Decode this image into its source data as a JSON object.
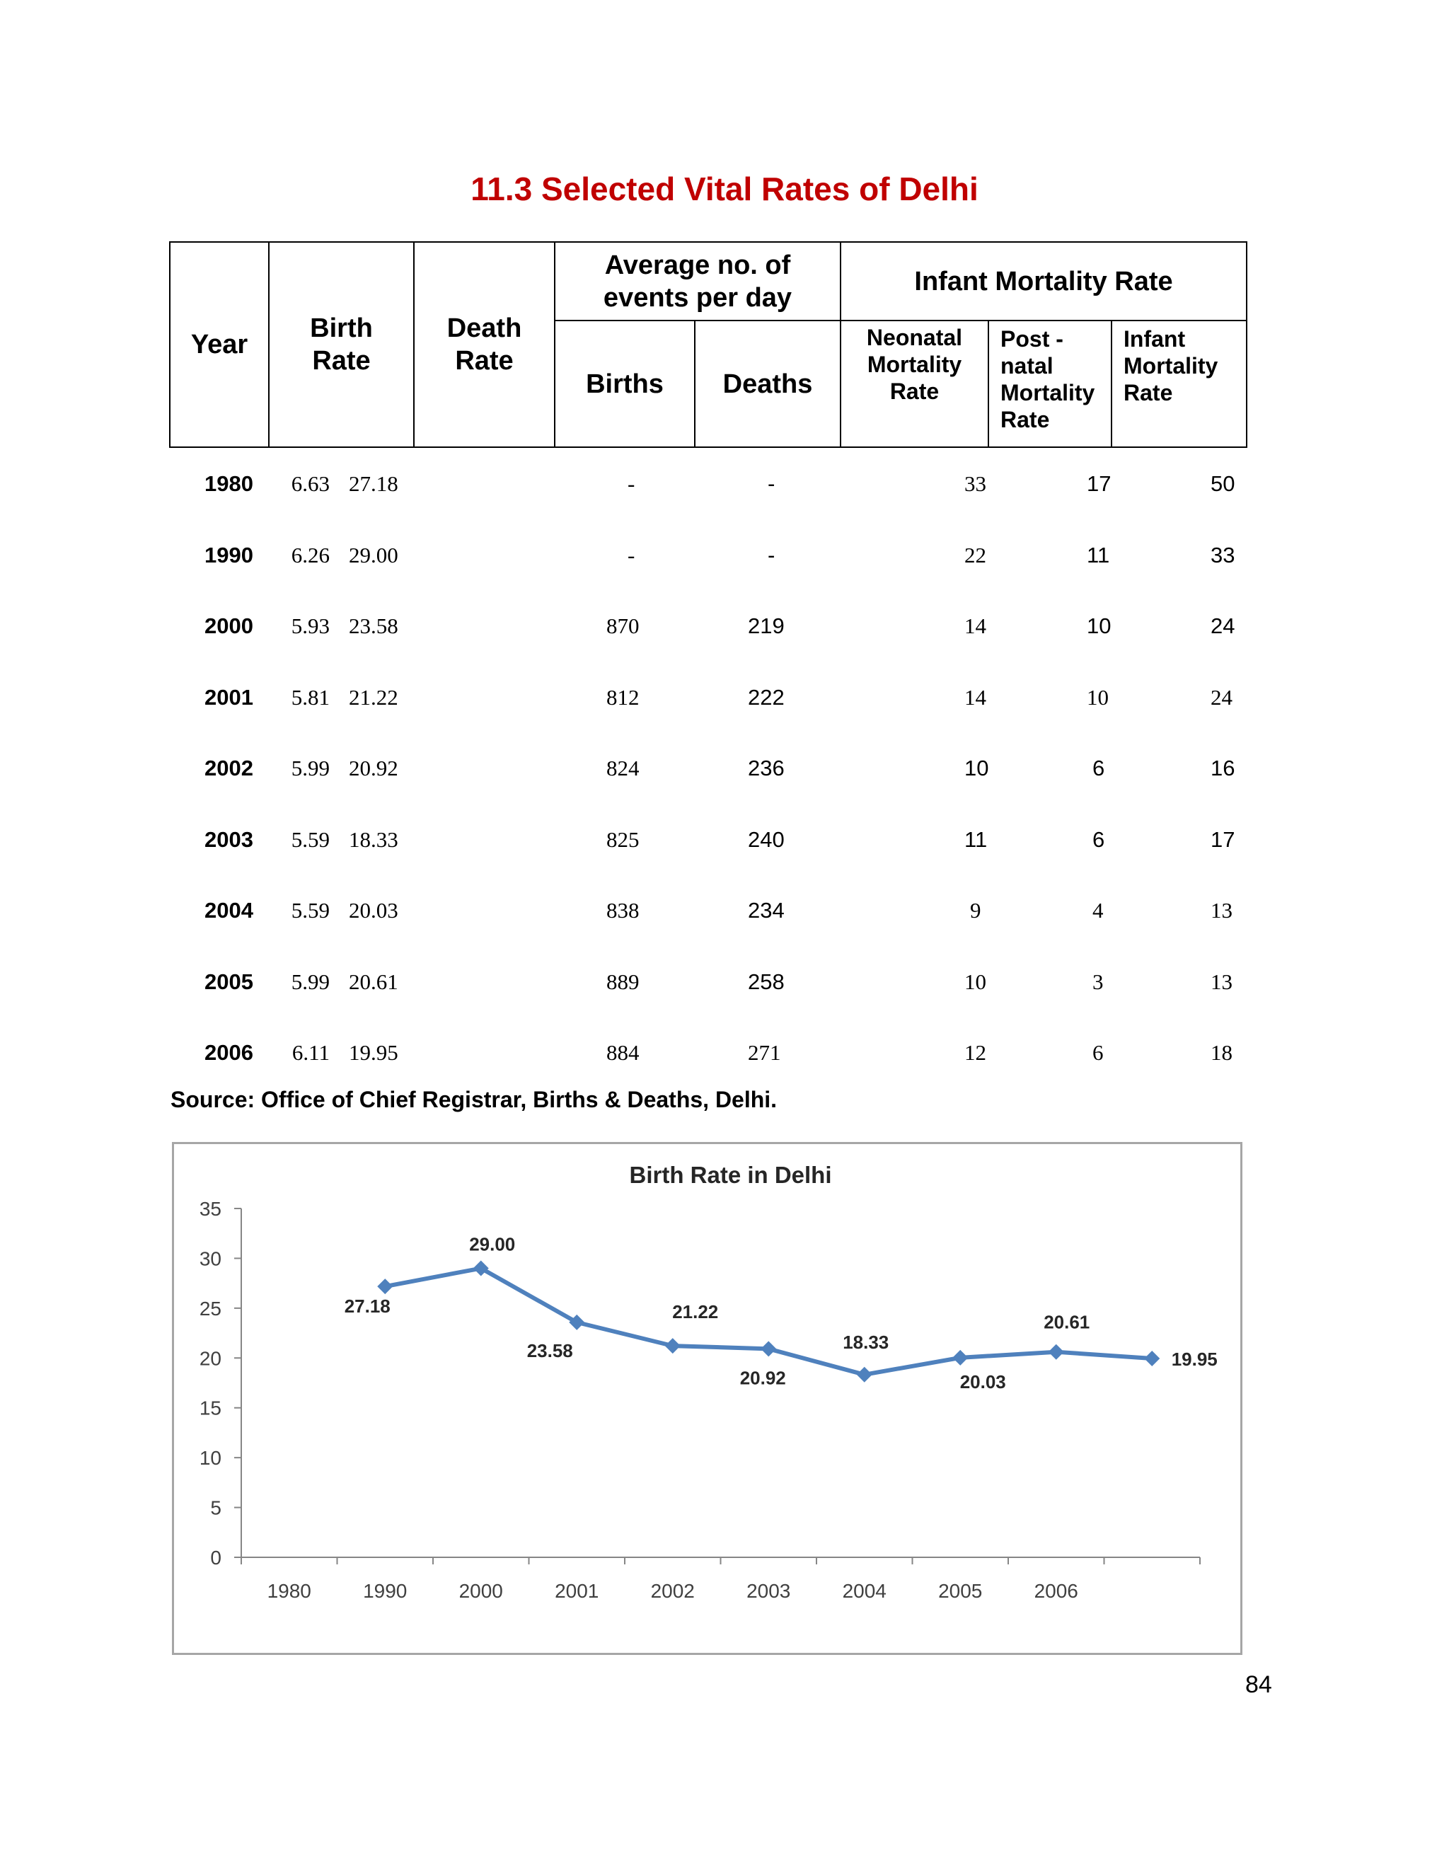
{
  "title": "11.3 Selected Vital Rates of Delhi",
  "table": {
    "headers": {
      "year": "Year",
      "birth_rate": "Birth Rate",
      "death_rate": "Death Rate",
      "avg_events": "Average no. of events per day",
      "imr_group": "Infant Mortality Rate",
      "births": "Births",
      "deaths": "Deaths",
      "neonatal": "Neonatal Mortality Rate",
      "postnatal": "Post - natal Mortality Rate",
      "infant": "Infant Mortality Rate"
    },
    "rows": [
      {
        "year": "1980",
        "birth_rate": "27.18",
        "death_rate": "6.63",
        "births": "-",
        "deaths": "-",
        "neonatal": "33",
        "postnatal": "17",
        "infant": "50"
      },
      {
        "year": "1990",
        "birth_rate": "29.00",
        "death_rate": "6.26",
        "births": "-",
        "deaths": "-",
        "neonatal": "22",
        "postnatal": "11",
        "infant": "33"
      },
      {
        "year": "2000",
        "birth_rate": "23.58",
        "death_rate": "5.93",
        "births": "870",
        "deaths": "219",
        "neonatal": "14",
        "postnatal": "10",
        "infant": "24"
      },
      {
        "year": "2001",
        "birth_rate": "21.22",
        "death_rate": "5.81",
        "births": "812",
        "deaths": "222",
        "neonatal": "14",
        "postnatal": "10",
        "infant": "24"
      },
      {
        "year": "2002",
        "birth_rate": "20.92",
        "death_rate": "5.99",
        "births": "824",
        "deaths": "236",
        "neonatal": "10",
        "postnatal": "6",
        "infant": "16"
      },
      {
        "year": "2003",
        "birth_rate": "18.33",
        "death_rate": "5.59",
        "births": "825",
        "deaths": "240",
        "neonatal": "11",
        "postnatal": "6",
        "infant": "17"
      },
      {
        "year": "2004",
        "birth_rate": "20.03",
        "death_rate": "5.59",
        "births": "838",
        "deaths": "234",
        "neonatal": "9",
        "postnatal": "4",
        "infant": "13"
      },
      {
        "year": "2005",
        "birth_rate": "20.61",
        "death_rate": "5.99",
        "births": "889",
        "deaths": "258",
        "neonatal": "10",
        "postnatal": "3",
        "infant": "13"
      },
      {
        "year": "2006",
        "birth_rate": "19.95",
        "death_rate": "6.11",
        "births": "884",
        "deaths": "271",
        "neonatal": "12",
        "postnatal": "6",
        "infant": "18"
      }
    ]
  },
  "source": "Source: Office of Chief Registrar, Births & Deaths, Delhi.",
  "page_number": "84",
  "chart_data": {
    "type": "line",
    "title": "Birth Rate in Delhi",
    "categories": [
      "1980",
      "1990",
      "2000",
      "2001",
      "2002",
      "2003",
      "2004",
      "2005",
      "2006"
    ],
    "values": [
      27.18,
      29.0,
      23.58,
      21.22,
      20.92,
      18.33,
      20.03,
      20.61,
      19.95
    ],
    "data_labels": [
      "27.18",
      "29.00",
      "23.58",
      "21.22",
      "20.92",
      "18.33",
      "20.03",
      "20.61",
      "19.95"
    ],
    "ylim": [
      0,
      35
    ],
    "yticks": [
      "0",
      "5",
      "10",
      "15",
      "20",
      "25",
      "30",
      "35"
    ],
    "grid": false,
    "legend": "none",
    "line_color": "#4f81bd"
  }
}
